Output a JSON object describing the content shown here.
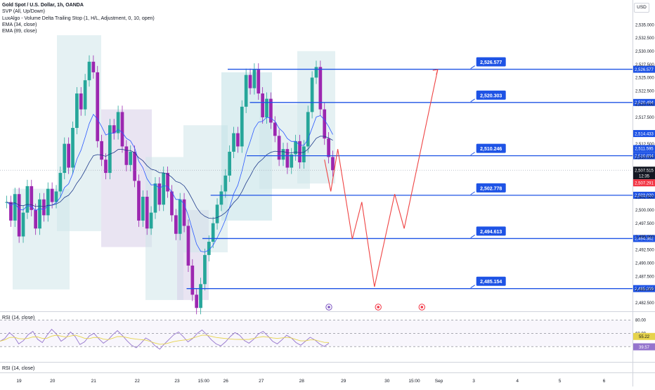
{
  "header": {
    "title": "Gold Spot / U.S. Dollar, 1h, OANDA",
    "indicators": [
      "SVP (All, Up/Down)",
      "LuxAlgo - Volume Delta Trailing Stop (1, H/L, Adjustment, 0, 10, open)",
      "EMA (34, close)",
      "EMA (89, close)"
    ],
    "currency": "USD"
  },
  "colors": {
    "level_line": "#1e53e5",
    "projection": "#ef4444",
    "bull": "#26a69a",
    "bear": "#9c27b0",
    "ema34": "#2b59ff",
    "ema89": "#1e3a8a",
    "rsi_line": "#9575cd",
    "rsi_ma": "#e6d34c",
    "price_tag": "#1e53e5",
    "current_price_tag": "#131722",
    "red_price_tag": "#f23645"
  },
  "chart_data": [
    {
      "type": "line",
      "title": "Gold Spot / U.S. Dollar, 1h, OANDA",
      "x_ticks": [
        "19",
        "20",
        "21",
        "22",
        "23",
        "15:00",
        "26",
        "27",
        "28",
        "29",
        "30",
        "15:00",
        "Sep",
        "3",
        "4",
        "5",
        "6"
      ],
      "y_ticks": [
        2482.5,
        2485.0,
        2487.5,
        2490.0,
        2492.5,
        2495.0,
        2497.5,
        2500.0,
        2502.5,
        2505.0,
        2510.0,
        2512.5,
        2517.5,
        2520.0,
        2522.5,
        2525.0,
        2527.5,
        2530.0,
        2532.5,
        2535.0
      ],
      "y_tick_labels": [
        "2,482.500",
        "2,485.000",
        "2,487.500",
        "2,490.000",
        "2,492.500",
        "2,495.000",
        "2,497.500",
        "2,500.000",
        "2,502.500",
        "2,505.000",
        "2,510.000",
        "2,512.500",
        "2,517.500",
        "2,520.000",
        "2,522.500",
        "2,525.000",
        "2,527.500",
        "2,530.000",
        "2,532.500",
        "2,535.000"
      ],
      "ylim": [
        2481,
        2537
      ],
      "levels": [
        {
          "value": 2526.577,
          "label": "2,526.577",
          "axis_label": "2,526.577"
        },
        {
          "value": 2520.303,
          "label": "2,520.303",
          "axis_label": "2,520.494"
        },
        {
          "value": 2510.246,
          "label": "2,510.246",
          "axis_label": "2,510.834"
        },
        {
          "value": 2502.778,
          "label": "2,502.778",
          "axis_label": "2,503.020"
        },
        {
          "value": 2494.613,
          "label": "2,494.613",
          "axis_label": "2,494.362"
        },
        {
          "value": 2485.154,
          "label": "2,485.154",
          "axis_label": "2,485.209"
        }
      ],
      "price_tags": [
        {
          "value": 2514.433,
          "label": "2,514.433"
        },
        {
          "value": 2511.595,
          "label": "2,511.595"
        }
      ],
      "current_price": {
        "value": 2507.515,
        "label": "2,507.515",
        "countdown": "12:35"
      },
      "red_price": {
        "value": 2507.291,
        "label": "2,507.291"
      },
      "projection_path": [
        {
          "x": 0.513,
          "y": 2509.5
        },
        {
          "x": 0.523,
          "y": 2503.5
        },
        {
          "x": 0.534,
          "y": 2511.5
        },
        {
          "x": 0.557,
          "y": 2494.5
        },
        {
          "x": 0.572,
          "y": 2501.5
        },
        {
          "x": 0.592,
          "y": 2485.5
        },
        {
          "x": 0.624,
          "y": 2503.0
        },
        {
          "x": 0.639,
          "y": 2496.5
        },
        {
          "x": 0.692,
          "y": 2526.5
        }
      ],
      "candles_close": [
        2501.5,
        2498.0,
        2503.0,
        2495.0,
        2499.5,
        2504.5,
        2500.0,
        2496.5,
        2502.0,
        2499.0,
        2504.0,
        2501.5,
        2503.5,
        2507.0,
        2512.5,
        2508.0,
        2515.5,
        2522.0,
        2519.0,
        2524.5,
        2528.0,
        2526.0,
        2513.0,
        2509.5,
        2507.0,
        2516.0,
        2514.5,
        2518.5,
        2512.0,
        2508.5,
        2511.0,
        2505.5,
        2498.0,
        2502.5,
        2496.5,
        2499.5,
        2505.0,
        2501.0,
        2507.0,
        2503.5,
        2499.0,
        2495.5,
        2502.0,
        2497.0,
        2489.5,
        2484.0,
        2481.5,
        2486.0,
        2491.5,
        2494.0,
        2497.5,
        2501.0,
        2503.5,
        2506.5,
        2511.0,
        2514.5,
        2512.0,
        2519.5,
        2525.5,
        2523.0,
        2526.5,
        2522.0,
        2517.5,
        2521.0,
        2516.5,
        2514.0,
        2509.5,
        2511.5,
        2508.0,
        2510.5,
        2513.0,
        2509.0,
        2512.0,
        2518.5,
        2525.0,
        2527.0,
        2519.0,
        2513.5,
        2510.0,
        2507.5
      ],
      "rsi": {
        "label": "RSI (14, close)",
        "levels": [
          80.0,
          60.0,
          40.0
        ],
        "value": 55.22,
        "ma_value": 39.57,
        "values": [
          48,
          52,
          61,
          55,
          44,
          49,
          58,
          63,
          51,
          46,
          57,
          66,
          59,
          48,
          53,
          62,
          55,
          43,
          47,
          56,
          60,
          52,
          45,
          50,
          58,
          64,
          57,
          49,
          42,
          38,
          45,
          53,
          49,
          41,
          36,
          44,
          51,
          58,
          62,
          55,
          47,
          52,
          60,
          65,
          58,
          50,
          44,
          41,
          47,
          55,
          61,
          57,
          49,
          45,
          51,
          59,
          63,
          56,
          48,
          44,
          50,
          57,
          53,
          46,
          42,
          48,
          54,
          50,
          44,
          40,
          45
        ]
      },
      "rsi2": {
        "label": "RSI (14, close)"
      }
    }
  ]
}
